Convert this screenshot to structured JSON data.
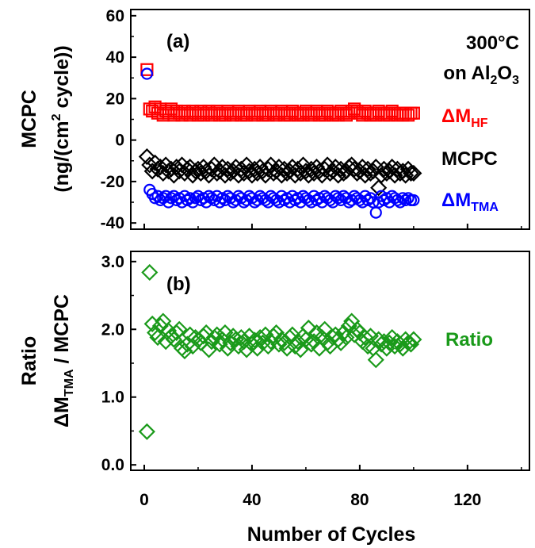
{
  "chart_data": [
    {
      "type": "scatter",
      "panel_label": "(a)",
      "annotation": {
        "temperature": "300°C",
        "substrate_prefix": "on Al",
        "substrate_sub": "2",
        "substrate_suffix": "O",
        "substrate_sub2": "3"
      },
      "ylabel_line1": "MCPC",
      "ylabel_line2_pre": "(ng/(cm",
      "ylabel_line2_sup": "2",
      "ylabel_line2_post": " cycle))",
      "xlim": [
        -5,
        143
      ],
      "ylim": [
        -43,
        63
      ],
      "yticks": [
        -40,
        -20,
        0,
        20,
        40,
        60
      ],
      "ytick_labels": [
        "-40",
        "-20",
        "0",
        "20",
        "40",
        "60"
      ],
      "grid": false,
      "series": [
        {
          "name": "ΔM",
          "name_sub": "HF",
          "color": "#ff0000",
          "marker": "square",
          "x": [
            1,
            2,
            3,
            4,
            5,
            6,
            7,
            8,
            9,
            10,
            11,
            12,
            13,
            14,
            15,
            16,
            17,
            18,
            19,
            20,
            21,
            22,
            23,
            24,
            25,
            26,
            27,
            28,
            29,
            30,
            31,
            32,
            33,
            34,
            35,
            36,
            37,
            38,
            39,
            40,
            41,
            42,
            43,
            44,
            45,
            46,
            47,
            48,
            49,
            50,
            51,
            52,
            53,
            54,
            55,
            56,
            57,
            58,
            59,
            60,
            61,
            62,
            63,
            64,
            65,
            66,
            67,
            68,
            69,
            70,
            71,
            72,
            73,
            74,
            75,
            76,
            77,
            78,
            79,
            80,
            81,
            82,
            83,
            84,
            85,
            86,
            87,
            88,
            89,
            90,
            91,
            92,
            93,
            94,
            95,
            96,
            97,
            98,
            99,
            100
          ],
          "y": [
            34,
            15,
            14,
            16,
            13,
            15,
            12,
            14,
            13,
            15,
            12,
            14,
            13,
            12,
            14,
            13,
            12,
            14,
            13,
            12,
            14,
            12,
            13,
            14,
            12,
            13,
            14,
            12,
            13,
            12,
            14,
            13,
            12,
            13,
            14,
            12,
            13,
            12,
            14,
            13,
            12,
            13,
            14,
            12,
            13,
            12,
            14,
            13,
            12,
            13,
            14,
            12,
            13,
            12,
            14,
            13,
            12,
            13,
            12,
            14,
            13,
            12,
            13,
            14,
            12,
            13,
            12,
            14,
            13,
            12,
            13,
            12,
            14,
            13,
            12,
            13,
            14,
            15,
            14,
            13,
            12,
            14,
            13,
            12,
            13,
            12,
            14,
            13,
            12,
            13,
            12,
            14,
            13,
            12,
            13,
            12,
            13,
            12,
            13,
            13
          ]
        },
        {
          "name": "MCPC",
          "color": "#000000",
          "marker": "diamond",
          "x": [
            1,
            2,
            3,
            4,
            5,
            6,
            7,
            8,
            9,
            10,
            11,
            12,
            13,
            14,
            15,
            16,
            17,
            18,
            19,
            20,
            21,
            22,
            23,
            24,
            25,
            26,
            27,
            28,
            29,
            30,
            31,
            32,
            33,
            34,
            35,
            36,
            37,
            38,
            39,
            40,
            41,
            42,
            43,
            44,
            45,
            46,
            47,
            48,
            49,
            50,
            51,
            52,
            53,
            54,
            55,
            56,
            57,
            58,
            59,
            60,
            61,
            62,
            63,
            64,
            65,
            66,
            67,
            68,
            69,
            70,
            71,
            72,
            73,
            74,
            75,
            76,
            77,
            78,
            79,
            80,
            81,
            82,
            83,
            84,
            85,
            86,
            87,
            88,
            89,
            90,
            91,
            92,
            93,
            94,
            95,
            96,
            97,
            98,
            99,
            100
          ],
          "y": [
            -8,
            -12,
            -15,
            -11,
            -14,
            -13,
            -16,
            -12,
            -15,
            -14,
            -17,
            -13,
            -15,
            -12,
            -16,
            -14,
            -13,
            -17,
            -15,
            -14,
            -16,
            -13,
            -15,
            -17,
            -14,
            -12,
            -16,
            -15,
            -13,
            -17,
            -14,
            -16,
            -15,
            -13,
            -17,
            -14,
            -16,
            -12,
            -15,
            -17,
            -14,
            -16,
            -13,
            -15,
            -17,
            -14,
            -12,
            -16,
            -15,
            -13,
            -17,
            -14,
            -16,
            -15,
            -13,
            -17,
            -14,
            -16,
            -12,
            -15,
            -17,
            -14,
            -16,
            -13,
            -15,
            -17,
            -14,
            -12,
            -16,
            -15,
            -13,
            -17,
            -14,
            -16,
            -15,
            -13,
            -12,
            -14,
            -16,
            -15,
            -13,
            -17,
            -14,
            -16,
            -15,
            -13,
            -23,
            -17,
            -14,
            -16,
            -15,
            -13,
            -17,
            -14,
            -16,
            -15,
            -17,
            -14,
            -16,
            -16
          ]
        },
        {
          "name": "ΔM",
          "name_sub": "TMA",
          "color": "#0000ff",
          "marker": "circle",
          "x": [
            1,
            2,
            3,
            4,
            5,
            6,
            7,
            8,
            9,
            10,
            11,
            12,
            13,
            14,
            15,
            16,
            17,
            18,
            19,
            20,
            21,
            22,
            23,
            24,
            25,
            26,
            27,
            28,
            29,
            30,
            31,
            32,
            33,
            34,
            35,
            36,
            37,
            38,
            39,
            40,
            41,
            42,
            43,
            44,
            45,
            46,
            47,
            48,
            49,
            50,
            51,
            52,
            53,
            54,
            55,
            56,
            57,
            58,
            59,
            60,
            61,
            62,
            63,
            64,
            65,
            66,
            67,
            68,
            69,
            70,
            71,
            72,
            73,
            74,
            75,
            76,
            77,
            78,
            79,
            80,
            81,
            82,
            83,
            84,
            85,
            86,
            87,
            88,
            89,
            90,
            91,
            92,
            93,
            94,
            95,
            96,
            97,
            98,
            99,
            100
          ],
          "y": [
            32,
            -24,
            -26,
            -28,
            -27,
            -29,
            -28,
            -27,
            -30,
            -28,
            -27,
            -29,
            -28,
            -30,
            -27,
            -29,
            -28,
            -30,
            -28,
            -27,
            -29,
            -28,
            -30,
            -27,
            -28,
            -29,
            -27,
            -30,
            -28,
            -29,
            -27,
            -28,
            -30,
            -29,
            -27,
            -28,
            -30,
            -29,
            -27,
            -28,
            -30,
            -29,
            -27,
            -28,
            -29,
            -30,
            -27,
            -28,
            -29,
            -30,
            -27,
            -29,
            -28,
            -30,
            -27,
            -29,
            -28,
            -30,
            -27,
            -28,
            -29,
            -30,
            -27,
            -29,
            -28,
            -30,
            -27,
            -28,
            -29,
            -30,
            -27,
            -28,
            -29,
            -27,
            -28,
            -30,
            -29,
            -27,
            -28,
            -29,
            -30,
            -27,
            -29,
            -28,
            -30,
            -35,
            -30,
            -27,
            -29,
            -28,
            -30,
            -27,
            -28,
            -29,
            -30,
            -28,
            -29,
            -28,
            -29,
            -29
          ]
        }
      ]
    },
    {
      "type": "scatter",
      "panel_label": "(b)",
      "ylabel_line1": "Ratio",
      "ylabel_line2_pre": "ΔM",
      "ylabel_line2_sub": "TMA",
      "ylabel_line2_post": " / MCPC",
      "xlabel": "Number of Cycles",
      "xlim": [
        -5,
        143
      ],
      "ylim": [
        -0.08,
        3.15
      ],
      "xticks": [
        0,
        40,
        80,
        120
      ],
      "xtick_labels": [
        "0",
        "40",
        "80",
        "120"
      ],
      "yticks": [
        0.0,
        1.0,
        2.0,
        3.0
      ],
      "ytick_labels": [
        "0.0",
        "1.0",
        "2.0",
        "3.0"
      ],
      "grid": false,
      "series": [
        {
          "name": "Ratio",
          "color": "#1a9a1a",
          "marker": "diamond",
          "x": [
            1,
            2,
            3,
            4,
            5,
            6,
            7,
            8,
            9,
            10,
            11,
            12,
            13,
            14,
            15,
            16,
            17,
            18,
            19,
            20,
            21,
            22,
            23,
            24,
            25,
            26,
            27,
            28,
            29,
            30,
            31,
            32,
            33,
            34,
            35,
            36,
            37,
            38,
            39,
            40,
            41,
            42,
            43,
            44,
            45,
            46,
            47,
            48,
            49,
            50,
            51,
            52,
            53,
            54,
            55,
            56,
            57,
            58,
            59,
            60,
            61,
            62,
            63,
            64,
            65,
            66,
            67,
            68,
            69,
            70,
            71,
            72,
            73,
            74,
            75,
            76,
            77,
            78,
            79,
            80,
            81,
            82,
            83,
            84,
            85,
            86,
            87,
            88,
            89,
            90,
            91,
            92,
            93,
            94,
            95,
            96,
            97,
            98,
            99,
            100
          ],
          "y": [
            0.49,
            2.84,
            2.08,
            1.95,
            1.88,
            2.05,
            2.12,
            1.82,
            1.98,
            1.9,
            1.85,
            1.95,
            2.0,
            1.72,
            1.68,
            1.78,
            1.92,
            1.75,
            1.88,
            1.84,
            1.8,
            1.9,
            1.95,
            1.7,
            1.82,
            1.88,
            1.92,
            1.78,
            1.85,
            1.95,
            1.72,
            1.8,
            1.9,
            1.85,
            1.75,
            1.88,
            1.82,
            1.7,
            1.9,
            1.78,
            1.84,
            1.72,
            1.88,
            1.8,
            1.92,
            1.75,
            1.82,
            1.9,
            1.95,
            1.78,
            1.85,
            1.8,
            1.72,
            1.88,
            1.92,
            1.75,
            1.82,
            1.7,
            1.9,
            1.85,
            2.02,
            1.78,
            1.82,
            1.95,
            1.72,
            1.88,
            2.0,
            1.8,
            1.75,
            1.88,
            1.92,
            1.85,
            1.8,
            1.95,
            1.88,
            2.05,
            2.12,
            1.92,
            2.0,
            1.95,
            1.82,
            1.88,
            1.75,
            1.9,
            1.72,
            1.55,
            1.85,
            1.78,
            1.82,
            1.72,
            1.8,
            1.88,
            1.75,
            1.82,
            1.78,
            1.72,
            1.85,
            1.8,
            1.78,
            1.85
          ]
        }
      ]
    }
  ]
}
